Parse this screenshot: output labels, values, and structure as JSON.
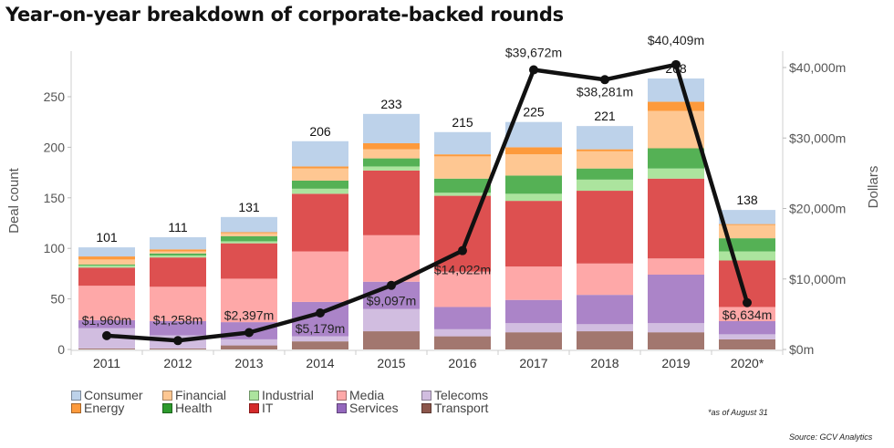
{
  "title": "Year-on-year breakdown of corporate-backed rounds",
  "note": "*as of August 31",
  "source": "Source: GCV Analytics",
  "chart_data": {
    "type": "bar",
    "subtype": "stacked-bar-with-line",
    "title": "Year-on-year breakdown of corporate-backed rounds",
    "xlabel": "",
    "ylabel": "Deal count",
    "y2label": "Dollars",
    "ylim": [
      0,
      260
    ],
    "y2lim": [
      0,
      42000
    ],
    "yticks": [
      0,
      50,
      100,
      150,
      200,
      250
    ],
    "y2ticks": [
      "$0m",
      "$10,000m",
      "$20,000m",
      "$30,000m",
      "$40,000m"
    ],
    "y2tick_values": [
      0,
      10000,
      20000,
      30000,
      40000
    ],
    "grid": false,
    "legend_position": "bottom-left",
    "categories": [
      "2011",
      "2012",
      "2013",
      "2014",
      "2015",
      "2016",
      "2017",
      "2018",
      "2019",
      "2020*"
    ],
    "totals": [
      101,
      111,
      131,
      206,
      233,
      215,
      225,
      221,
      268,
      138
    ],
    "series": [
      {
        "name": "Transport",
        "color": "#a2776f",
        "values": [
          1,
          1,
          4,
          8,
          18,
          13,
          17,
          18,
          17,
          10
        ]
      },
      {
        "name": "Telecoms",
        "color": "#d1bde0",
        "values": [
          20,
          13,
          6,
          5,
          22,
          7,
          9,
          7,
          9,
          5
        ]
      },
      {
        "name": "Services",
        "color": "#ab84c8",
        "values": [
          8,
          14,
          17,
          34,
          27,
          22,
          23,
          29,
          48,
          13
        ]
      },
      {
        "name": "Media",
        "color": "#fea8a8",
        "values": [
          34,
          34,
          43,
          50,
          46,
          35,
          33,
          31,
          16,
          14
        ]
      },
      {
        "name": "IT",
        "color": "#dd5050",
        "values": [
          18,
          29,
          35,
          57,
          64,
          75,
          65,
          72,
          79,
          46
        ]
      },
      {
        "name": "Industrial",
        "color": "#ace49e",
        "values": [
          2,
          2,
          2,
          5,
          4,
          3,
          7,
          11,
          10,
          9
        ]
      },
      {
        "name": "Health",
        "color": "#55b155",
        "values": [
          1,
          2,
          5,
          8,
          8,
          14,
          18,
          11,
          20,
          13
        ]
      },
      {
        "name": "Financial",
        "color": "#fec792",
        "values": [
          5,
          2,
          3,
          12,
          9,
          22,
          21,
          17,
          37,
          13
        ]
      },
      {
        "name": "Energy",
        "color": "#fd9a3c",
        "values": [
          3,
          2,
          1,
          2,
          6,
          2,
          7,
          2,
          9,
          1
        ]
      },
      {
        "name": "Consumer",
        "color": "#bdd2ea",
        "values": [
          9,
          12,
          15,
          25,
          29,
          22,
          25,
          23,
          23,
          14
        ]
      }
    ],
    "line": {
      "name": "Dollars",
      "axis": "right",
      "color": "#111111",
      "values": [
        1960,
        1258,
        2397,
        5179,
        9097,
        14022,
        39672,
        38281,
        40409,
        6634
      ],
      "labels": [
        "$1,960m",
        "$1,258m",
        "$2,397m",
        "$5,179m",
        "$9,097m",
        "$14,022m",
        "$39,672m",
        "$38,281m",
        "$40,409m",
        "$6,634m"
      ]
    }
  },
  "legend": [
    {
      "name": "Consumer",
      "color": "#bdd2ea"
    },
    {
      "name": "Financial",
      "color": "#fec792"
    },
    {
      "name": "Industrial",
      "color": "#ace49e"
    },
    {
      "name": "Media",
      "color": "#fea8a8"
    },
    {
      "name": "Telecoms",
      "color": "#d1bde0"
    },
    {
      "name": "Energy",
      "color": "#fd9a3c"
    },
    {
      "name": "Health",
      "color": "#2d9a2d"
    },
    {
      "name": "IT",
      "color": "#d42a2a"
    },
    {
      "name": "Services",
      "color": "#9468bd"
    },
    {
      "name": "Transport",
      "color": "#8c564b"
    }
  ]
}
